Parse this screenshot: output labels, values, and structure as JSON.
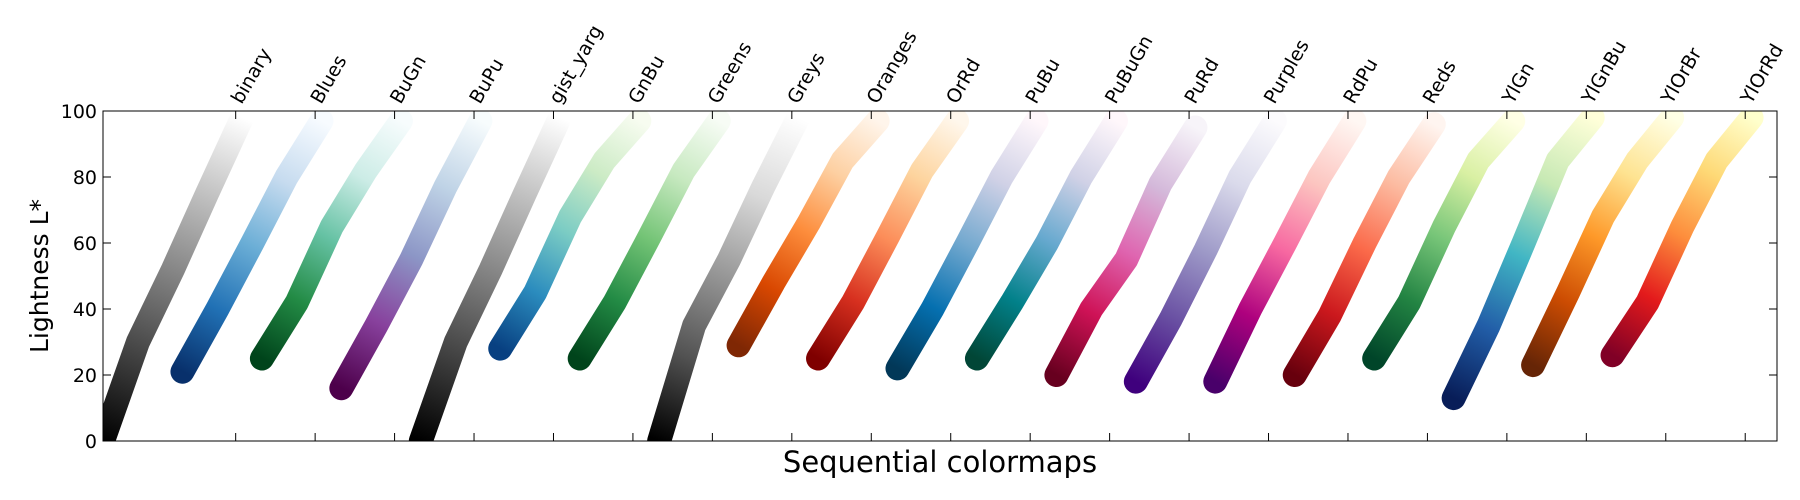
{
  "chart_data": {
    "type": "line",
    "xlabel": "Sequential colormaps",
    "ylabel": "Lightness L*",
    "xlim": [
      0,
      21.07
    ],
    "ylim": [
      0,
      100
    ],
    "yticks": [
      0,
      20,
      40,
      60,
      80,
      100
    ],
    "xticks": [
      {
        "value": 1.67,
        "label": "binary"
      },
      {
        "value": 2.67,
        "label": "Blues"
      },
      {
        "value": 3.67,
        "label": "BuGn"
      },
      {
        "value": 4.67,
        "label": "BuPu"
      },
      {
        "value": 5.67,
        "label": "gist_yarg"
      },
      {
        "value": 6.67,
        "label": "GnBu"
      },
      {
        "value": 7.67,
        "label": "Greens"
      },
      {
        "value": 8.67,
        "label": "Greys"
      },
      {
        "value": 9.67,
        "label": "Oranges"
      },
      {
        "value": 10.67,
        "label": "OrRd"
      },
      {
        "value": 11.67,
        "label": "PuBu"
      },
      {
        "value": 12.67,
        "label": "PuBuGn"
      },
      {
        "value": 13.67,
        "label": "PuRd"
      },
      {
        "value": 14.67,
        "label": "Purples"
      },
      {
        "value": 15.67,
        "label": "RdPu"
      },
      {
        "value": 16.67,
        "label": "Reds"
      },
      {
        "value": 17.67,
        "label": "YlGn"
      },
      {
        "value": 18.67,
        "label": "YlGnBu"
      },
      {
        "value": 19.67,
        "label": "YlOrBr"
      },
      {
        "value": 20.67,
        "label": "YlOrRd"
      }
    ],
    "series": [
      {
        "colors": [
          "#000000",
          "#404040",
          "#808080",
          "#bfbfbf",
          "#ffffff"
        ],
        "x": [
          0,
          0.44,
          0.88,
          1.31,
          1.75
        ],
        "values": [
          0,
          30,
          52,
          75,
          98
        ]
      },
      {
        "colors": [
          "#08306b",
          "#2171b5",
          "#6baed6",
          "#c6dbef",
          "#f7fbff"
        ],
        "x": [
          1,
          1.44,
          1.88,
          2.31,
          2.75
        ],
        "values": [
          21,
          40,
          60,
          80,
          97
        ]
      },
      {
        "colors": [
          "#00441b",
          "#238b45",
          "#66c2a4",
          "#ccece6",
          "#f7fcfd"
        ],
        "x": [
          2,
          2.44,
          2.88,
          3.31,
          3.75
        ],
        "values": [
          25,
          42,
          65,
          82,
          97
        ]
      },
      {
        "colors": [
          "#4d004b",
          "#88419d",
          "#8c96c6",
          "#bfd3e6",
          "#f7fcfd"
        ],
        "x": [
          3,
          3.44,
          3.88,
          4.31,
          4.75
        ],
        "values": [
          16,
          35,
          55,
          77,
          97
        ]
      },
      {
        "colors": [
          "#000000",
          "#404040",
          "#808080",
          "#bfbfbf",
          "#ffffff"
        ],
        "x": [
          4,
          4.44,
          4.88,
          5.31,
          5.75
        ],
        "values": [
          0,
          30,
          52,
          75,
          98
        ]
      },
      {
        "colors": [
          "#084081",
          "#2b8cbe",
          "#7bccc4",
          "#ccebc5",
          "#f7fcf0"
        ],
        "x": [
          5,
          5.44,
          5.88,
          6.31,
          6.75
        ],
        "values": [
          28,
          45,
          68,
          85,
          97
        ]
      },
      {
        "colors": [
          "#00441b",
          "#238b45",
          "#74c476",
          "#c7e9c0",
          "#f7fcf5"
        ],
        "x": [
          6,
          6.44,
          6.88,
          7.31,
          7.75
        ],
        "values": [
          25,
          42,
          62,
          82,
          97
        ]
      },
      {
        "colors": [
          "#000000",
          "#525252",
          "#969696",
          "#d9d9d9",
          "#ffffff"
        ],
        "x": [
          7,
          7.44,
          7.88,
          8.31,
          8.75
        ],
        "values": [
          0,
          35,
          55,
          77,
          98
        ]
      },
      {
        "colors": [
          "#7f2704",
          "#d94801",
          "#fd8d3c",
          "#fdd0a2",
          "#fff5eb"
        ],
        "x": [
          8,
          8.44,
          8.88,
          9.31,
          9.75
        ],
        "values": [
          29,
          48,
          66,
          85,
          97
        ]
      },
      {
        "colors": [
          "#7f0000",
          "#d7301f",
          "#fc8d59",
          "#fdd49e",
          "#fff7ec"
        ],
        "x": [
          9,
          9.44,
          9.88,
          10.31,
          10.75
        ],
        "values": [
          25,
          42,
          62,
          82,
          97
        ]
      },
      {
        "colors": [
          "#023858",
          "#0570b0",
          "#74a9cf",
          "#d0d1e6",
          "#fff7fb"
        ],
        "x": [
          10,
          10.44,
          10.88,
          11.31,
          11.75
        ],
        "values": [
          22,
          40,
          60,
          80,
          97
        ]
      },
      {
        "colors": [
          "#014636",
          "#02818a",
          "#67a9cf",
          "#d0d1e6",
          "#fff7fb"
        ],
        "x": [
          11,
          11.44,
          11.88,
          12.31,
          12.75
        ],
        "values": [
          25,
          42,
          60,
          80,
          97
        ]
      },
      {
        "colors": [
          "#67001f",
          "#ce1256",
          "#df65b0",
          "#d4b9da",
          "#f7f4f9"
        ],
        "x": [
          12,
          12.44,
          12.88,
          13.31,
          13.75
        ],
        "values": [
          20,
          40,
          55,
          78,
          95
        ]
      },
      {
        "colors": [
          "#3f007d",
          "#6a51a3",
          "#9e9ac8",
          "#dadaeb",
          "#fcfbfd"
        ],
        "x": [
          13,
          13.44,
          13.88,
          14.31,
          14.75
        ],
        "values": [
          18,
          37,
          58,
          80,
          97
        ]
      },
      {
        "colors": [
          "#49006a",
          "#ae017e",
          "#f768a1",
          "#fcc5c0",
          "#fff7f3"
        ],
        "x": [
          14,
          14.44,
          14.88,
          15.31,
          15.75
        ],
        "values": [
          18,
          40,
          60,
          80,
          97
        ]
      },
      {
        "colors": [
          "#67000d",
          "#cb181d",
          "#fb6a4a",
          "#fcbba1",
          "#fff5f0"
        ],
        "x": [
          15,
          15.44,
          15.88,
          16.31,
          16.75
        ],
        "values": [
          20,
          38,
          60,
          80,
          96
        ]
      },
      {
        "colors": [
          "#004529",
          "#238443",
          "#78c679",
          "#d9f0a3",
          "#ffffe5"
        ],
        "x": [
          16,
          16.44,
          16.88,
          17.31,
          17.75
        ],
        "values": [
          25,
          42,
          65,
          85,
          97
        ]
      },
      {
        "colors": [
          "#081d58",
          "#225ea8",
          "#41b6c4",
          "#c7e9b4",
          "#ffffd9"
        ],
        "x": [
          17,
          17.44,
          17.88,
          18.31,
          18.75
        ],
        "values": [
          13,
          35,
          60,
          85,
          98
        ]
      },
      {
        "colors": [
          "#662506",
          "#cc4c02",
          "#fe9929",
          "#fee391",
          "#ffffe5"
        ],
        "x": [
          18,
          18.44,
          18.88,
          19.31,
          19.75
        ],
        "values": [
          23,
          45,
          68,
          85,
          98
        ]
      },
      {
        "colors": [
          "#800026",
          "#e31a1c",
          "#fd8d3c",
          "#fed976",
          "#ffffcc"
        ],
        "x": [
          19,
          19.44,
          19.88,
          20.31,
          20.75
        ],
        "values": [
          26,
          42,
          65,
          85,
          98
        ]
      }
    ]
  }
}
